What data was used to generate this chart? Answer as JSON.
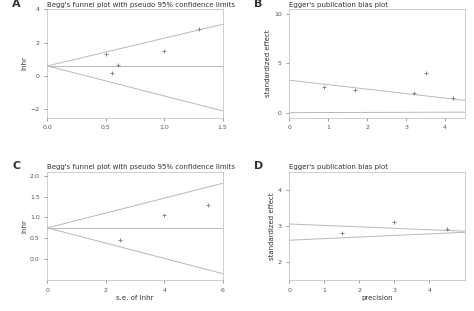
{
  "line_color": "#b8b8b8",
  "point_color": "#888888",
  "point_size": 3.5,
  "label_color": "#333333",
  "title_fontsize": 5,
  "label_fontsize": 5,
  "tick_fontsize": 4.5,
  "panel_label_fontsize": 8,
  "panels": [
    {
      "label": "A",
      "title": "Begg's funnel plot with pseudo 95% confidence limits",
      "xlabel": "",
      "ylabel": "lnhr",
      "xlim": [
        0,
        1.5
      ],
      "ylim": [
        -2.5,
        4
      ],
      "yticks": [
        -2,
        0,
        2,
        4
      ],
      "xticks": [
        0.0,
        0.5,
        1.0,
        1.5
      ],
      "upper_line": [
        [
          0,
          0.6
        ],
        [
          1.5,
          3.1
        ]
      ],
      "lower_line": [
        [
          0,
          0.6
        ],
        [
          1.5,
          -2.1
        ]
      ],
      "mid_line": [
        [
          0,
          0.6
        ],
        [
          1.5,
          0.6
        ]
      ],
      "points": [
        [
          0.5,
          1.3
        ],
        [
          0.6,
          0.65
        ],
        [
          0.55,
          0.2
        ],
        [
          1.0,
          1.5
        ],
        [
          1.3,
          2.8
        ]
      ]
    },
    {
      "label": "B",
      "title": "Egger's publication bias plot",
      "xlabel": "",
      "ylabel": "standardized effect",
      "xlim": [
        0,
        4.5
      ],
      "ylim": [
        -0.5,
        10.5
      ],
      "yticks": [
        0,
        5,
        10
      ],
      "xticks": [
        0,
        1,
        2,
        3,
        4
      ],
      "upper_line": [
        [
          0,
          3.3
        ],
        [
          4.5,
          1.25
        ]
      ],
      "lower_line": [
        [
          0,
          0.0
        ],
        [
          4.5,
          0.05
        ]
      ],
      "mid_line": null,
      "points": [
        [
          0.9,
          2.6
        ],
        [
          1.7,
          2.3
        ],
        [
          3.2,
          2.0
        ],
        [
          3.5,
          4.0
        ],
        [
          4.2,
          1.5
        ]
      ]
    },
    {
      "label": "C",
      "title": "Begg's funnel plot with pseudo 95% confidence limits",
      "xlabel": "s.e. of lnhr",
      "ylabel": "lnhr",
      "xlim": [
        0,
        6
      ],
      "ylim": [
        -0.5,
        2.1
      ],
      "yticks": [
        0.0,
        0.5,
        1.0,
        1.5,
        2.0
      ],
      "xticks": [
        0,
        2,
        4,
        6
      ],
      "upper_line": [
        [
          0,
          0.75
        ],
        [
          6,
          1.82
        ]
      ],
      "lower_line": [
        [
          0,
          0.75
        ],
        [
          6,
          -0.35
        ]
      ],
      "mid_line": [
        [
          0,
          0.75
        ],
        [
          6,
          0.75
        ]
      ],
      "points": [
        [
          2.5,
          0.45
        ],
        [
          4.0,
          1.05
        ],
        [
          5.5,
          1.3
        ]
      ]
    },
    {
      "label": "D",
      "title": "Egger's publication bias plot",
      "xlabel": "precision",
      "ylabel": "standardized effect",
      "xlim": [
        0,
        5
      ],
      "ylim": [
        1.5,
        4.5
      ],
      "yticks": [
        2,
        3,
        4
      ],
      "xticks": [
        0,
        1,
        2,
        3,
        4
      ],
      "upper_line": [
        [
          0,
          3.05
        ],
        [
          5,
          2.85
        ]
      ],
      "lower_line": [
        [
          0,
          2.6
        ],
        [
          5,
          2.82
        ]
      ],
      "mid_line": null,
      "points": [
        [
          1.5,
          2.8
        ],
        [
          3.0,
          3.1
        ],
        [
          4.5,
          2.9
        ]
      ]
    }
  ]
}
